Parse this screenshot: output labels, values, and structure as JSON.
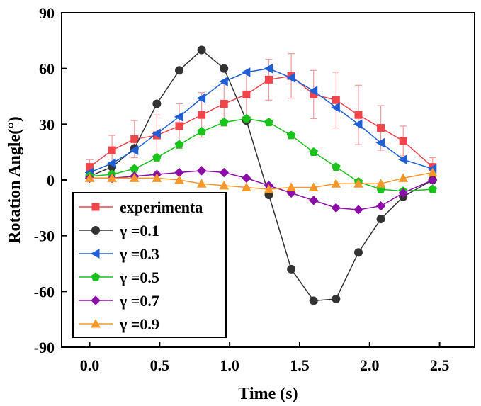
{
  "chart_data": {
    "type": "line",
    "xlabel": "Time (s)",
    "ylabel": "Rotation Angle(°)",
    "xlim": [
      -0.2,
      2.75
    ],
    "ylim": [
      -90,
      90
    ],
    "x_ticks": [
      0.0,
      0.5,
      1.0,
      1.5,
      2.0,
      2.5
    ],
    "x_tick_labels": [
      "0.0",
      "0.5",
      "1.0",
      "1.5",
      "2.0",
      "2.5"
    ],
    "y_ticks": [
      90,
      60,
      30,
      0,
      -30,
      -60,
      -90
    ],
    "y_tick_labels": [
      "90",
      "60",
      "30",
      "0",
      "-30",
      "-60",
      "-90"
    ],
    "grid": false,
    "legend_position": "bottom-left",
    "x": [
      0.0,
      0.16,
      0.32,
      0.48,
      0.64,
      0.8,
      0.96,
      1.12,
      1.28,
      1.44,
      1.6,
      1.76,
      1.92,
      2.08,
      2.24,
      2.45
    ],
    "series": [
      {
        "name": "experimenta",
        "color": "#f0464b",
        "marker": "square",
        "values": [
          7,
          16,
          22,
          24,
          29,
          35,
          41,
          46,
          54,
          56,
          46,
          43,
          35,
          28,
          21,
          7
        ],
        "errors": [
          4,
          8,
          10,
          11,
          12,
          12,
          12,
          12,
          11,
          12,
          13,
          15,
          16,
          12,
          8,
          5
        ]
      },
      {
        "name": "γ =0.1",
        "color": "#333333",
        "marker": "circle",
        "values": [
          2,
          7,
          17,
          41,
          59,
          70,
          60,
          32,
          -8,
          -48,
          -65,
          -64,
          -39,
          -21,
          -9,
          0
        ]
      },
      {
        "name": "γ =0.3",
        "color": "#1f5fd6",
        "marker": "triangle-left",
        "values": [
          4,
          9,
          16,
          25,
          34,
          44,
          53,
          58,
          60,
          55,
          48,
          39,
          30,
          20,
          11,
          6
        ]
      },
      {
        "name": "γ =0.5",
        "color": "#19c31c",
        "marker": "pentagon",
        "values": [
          2,
          3,
          6,
          12,
          19,
          26,
          31,
          33,
          31,
          24,
          15,
          7,
          -1,
          -5,
          -6,
          -5
        ]
      },
      {
        "name": "γ =0.7",
        "color": "#8c0fa8",
        "marker": "diamond",
        "values": [
          1,
          1,
          2,
          3,
          4,
          5,
          4,
          1,
          -3,
          -7,
          -11,
          -15,
          -16,
          -14,
          -7,
          0
        ]
      },
      {
        "name": "γ =0.9",
        "color": "#f5972a",
        "marker": "triangle-up",
        "values": [
          1,
          1,
          1,
          1,
          0,
          -2,
          -3,
          -4,
          -5,
          -4,
          -4,
          -2,
          -2,
          -2,
          1,
          4
        ]
      }
    ]
  }
}
